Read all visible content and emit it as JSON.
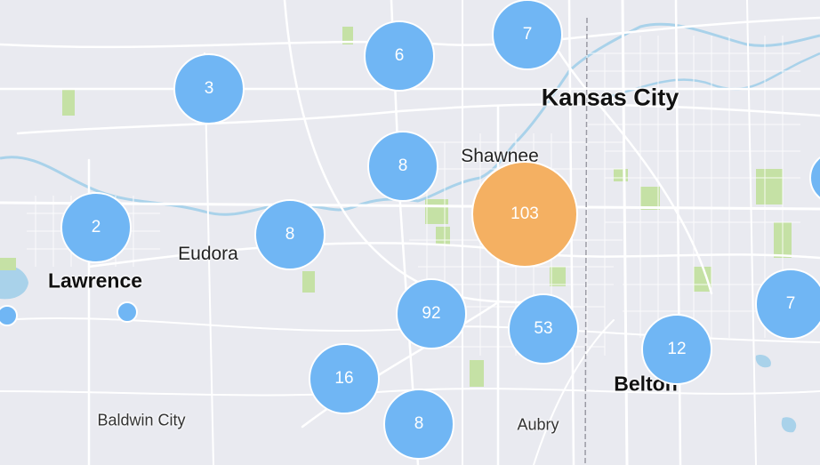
{
  "map": {
    "places": {
      "kansas_city": "Kansas City",
      "shawnee": "Shawnee",
      "eudora": "Eudora",
      "lawrence": "Lawrence",
      "belton": "Belton",
      "baldwin_city": "Baldwin City",
      "aubry": "Aubry"
    },
    "clusters": {
      "c3": "3",
      "c6": "6",
      "c7_top": "7",
      "c8_north": "8",
      "c2": "2",
      "c8_mid": "8",
      "c103": "103",
      "c92": "92",
      "c53": "53",
      "c16": "16",
      "c8_south": "8",
      "c12": "12",
      "c7_right": "7"
    },
    "colors": {
      "land": "#e9eaf0",
      "water": "#a9d2ea",
      "park": "#c5e1a5",
      "road": "#ffffff",
      "cluster_blue": "#70b6f4",
      "cluster_orange": "#f4b062"
    }
  }
}
